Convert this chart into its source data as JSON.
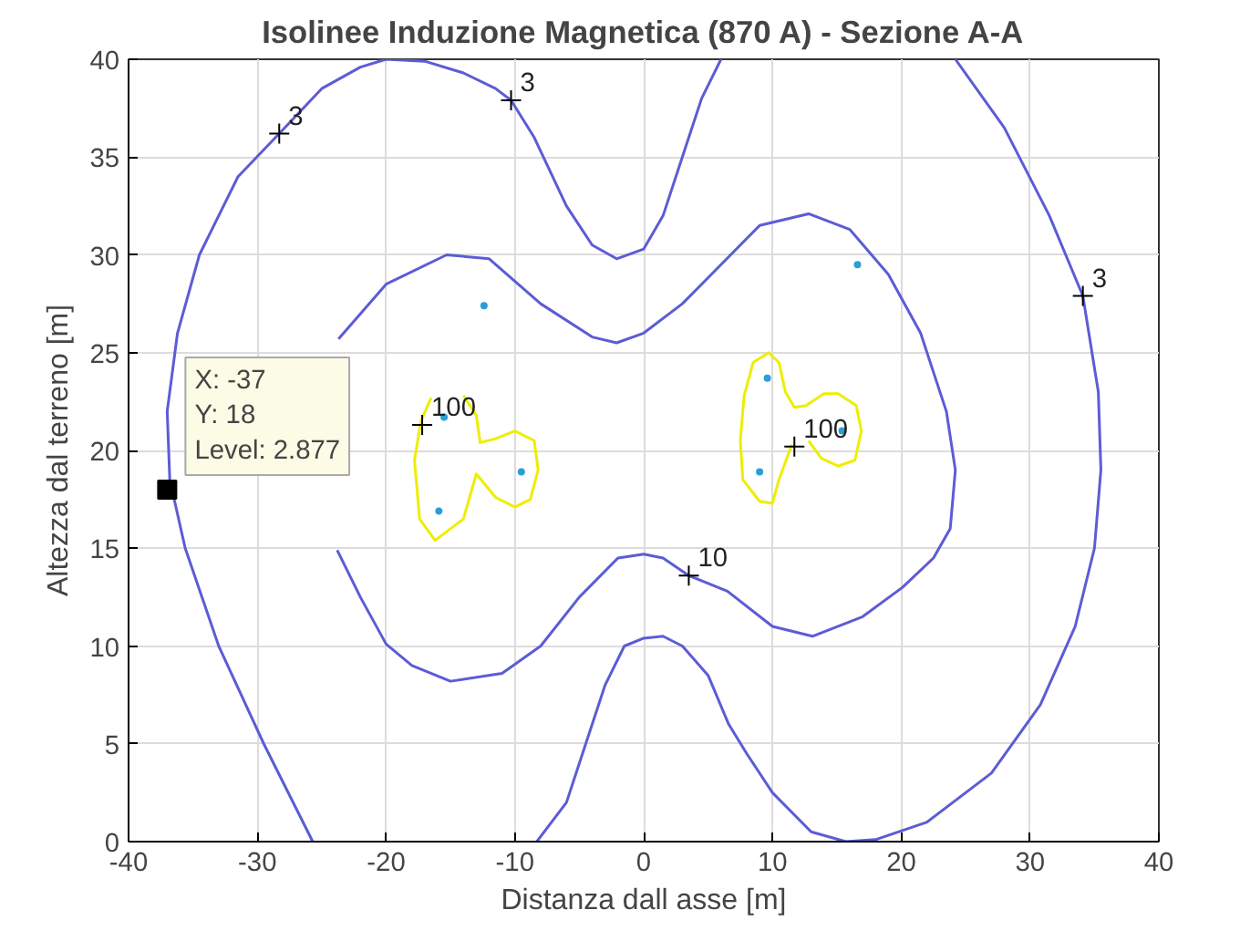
{
  "chart_data": {
    "type": "line",
    "title": "Isolinee Induzione Magnetica (870 A) - Sezione A-A",
    "xlabel": "Distanza dall asse [m]",
    "ylabel": "Altezza dal terreno [m]",
    "xlim": [
      -40,
      40
    ],
    "ylim": [
      0,
      40
    ],
    "xticks": [
      -40,
      -30,
      -20,
      -10,
      0,
      10,
      20,
      30,
      40
    ],
    "yticks": [
      0,
      5,
      10,
      15,
      20,
      25,
      30,
      35,
      40
    ],
    "grid": true,
    "series": [
      {
        "color": "#5c5cd6",
        "x": [
          -25.7,
          -29.5,
          -33,
          -35.6,
          -36.8,
          -37,
          -36.2,
          -34.5,
          -31.5,
          -28.3,
          -25,
          -22,
          -20,
          -17,
          -14,
          -11.5,
          -10.3,
          -8.5,
          -6,
          -4,
          -2.1,
          0,
          1.5,
          3,
          4.5,
          6
        ],
        "values": [
          0,
          5,
          10,
          15,
          18.5,
          22,
          26,
          30,
          34,
          36.2,
          38.5,
          39.6,
          40,
          39.9,
          39.3,
          38.5,
          37.9,
          36,
          32.5,
          30.5,
          29.8,
          30.3,
          32,
          35,
          38,
          40
        ]
      },
      {
        "color": "#5c5cd6",
        "x": [
          24.2,
          28,
          31.5,
          34.1,
          35.3,
          35.5,
          35,
          33.5,
          30.8,
          27,
          22,
          18,
          15.7,
          13,
          10,
          8,
          6.6,
          5,
          3,
          1.5,
          0,
          -1.5,
          -3,
          -4.5,
          -6,
          -8.3
        ],
        "values": [
          40,
          36.5,
          32,
          27.9,
          23,
          19,
          15,
          11,
          7,
          3.5,
          1,
          0.1,
          0,
          0.5,
          2.5,
          4.5,
          6,
          8.5,
          10,
          10.5,
          10.4,
          10,
          8,
          5,
          2,
          0
        ]
      },
      {
        "color": "#5c5cd6",
        "x": [
          -23.7,
          -20,
          -15.3,
          -12,
          -8,
          -4,
          -2.1,
          0,
          3,
          6,
          9,
          12.8,
          16,
          19,
          21.5,
          23.5,
          24.2,
          23.8,
          22.5,
          20.1,
          17,
          13.1,
          10,
          6.5,
          3.5,
          1.5,
          0,
          -2,
          -5,
          -8,
          -11,
          -15,
          -18,
          -20,
          -22,
          -23.8
        ],
        "values": [
          25.7,
          28.5,
          30,
          29.8,
          27.5,
          25.8,
          25.5,
          26,
          27.5,
          29.5,
          31.5,
          32.1,
          31.3,
          29,
          26,
          22,
          19,
          16,
          14.5,
          13,
          11.5,
          10.5,
          11,
          12.8,
          13.6,
          14.5,
          14.7,
          14.5,
          12.5,
          10,
          8.6,
          8.2,
          9,
          10.1,
          12.5,
          14.9
        ]
      },
      {
        "color": "#eeee00",
        "x": [
          -14,
          -13,
          -12.7,
          -11.5,
          -10,
          -8.5,
          -8.2,
          -8.8,
          -10,
          -11.5,
          -13,
          -14,
          -16.2,
          -17.4,
          -17.8,
          -17.3,
          -16.5
        ],
        "values": [
          22.8,
          21.8,
          20.4,
          20.6,
          21,
          20.5,
          19,
          17.5,
          17.1,
          17.6,
          18.8,
          16.5,
          15.4,
          16.5,
          19.5,
          21.5,
          22.7
        ]
      },
      {
        "color": "#eeee00",
        "x": [
          11.5,
          10.5,
          10,
          9,
          7.7,
          7.5,
          7.8,
          8.5,
          9.7,
          10.5,
          11,
          11.7,
          12.6,
          14,
          15.1,
          16.5,
          16.9,
          16.4,
          15.1,
          13.8,
          12.8
        ],
        "values": [
          20.3,
          18.5,
          17.3,
          17.4,
          18.5,
          20.5,
          22.8,
          24.5,
          25,
          24.5,
          23,
          22.2,
          22.3,
          22.9,
          22.9,
          22.3,
          21,
          19.5,
          19.2,
          19.6,
          20.5
        ]
      },
      {
        "type": "scatter",
        "marker": "circle",
        "color": "#2a9fd6",
        "x": [
          -12.4,
          -15.9,
          -9.5,
          -15.5,
          16.6,
          9.6,
          9.0,
          15.4
        ],
        "values": [
          27.4,
          16.9,
          18.9,
          21.7,
          29.5,
          23.7,
          18.9,
          21.0
        ]
      }
    ],
    "annotations": [
      {
        "text": "3",
        "x": -28.3,
        "y": 36.2
      },
      {
        "text": "3",
        "x": -10.3,
        "y": 37.9
      },
      {
        "text": "3",
        "x": 34.1,
        "y": 27.9
      },
      {
        "text": "10",
        "x": 3.5,
        "y": 13.6
      },
      {
        "text": "100",
        "x": -17.2,
        "y": 21.3
      },
      {
        "text": "100",
        "x": 11.7,
        "y": 20.2
      },
      {
        "text": "X: -37\nY: 18\nLevel: 2.877",
        "x": -37,
        "y": 18
      }
    ]
  }
}
